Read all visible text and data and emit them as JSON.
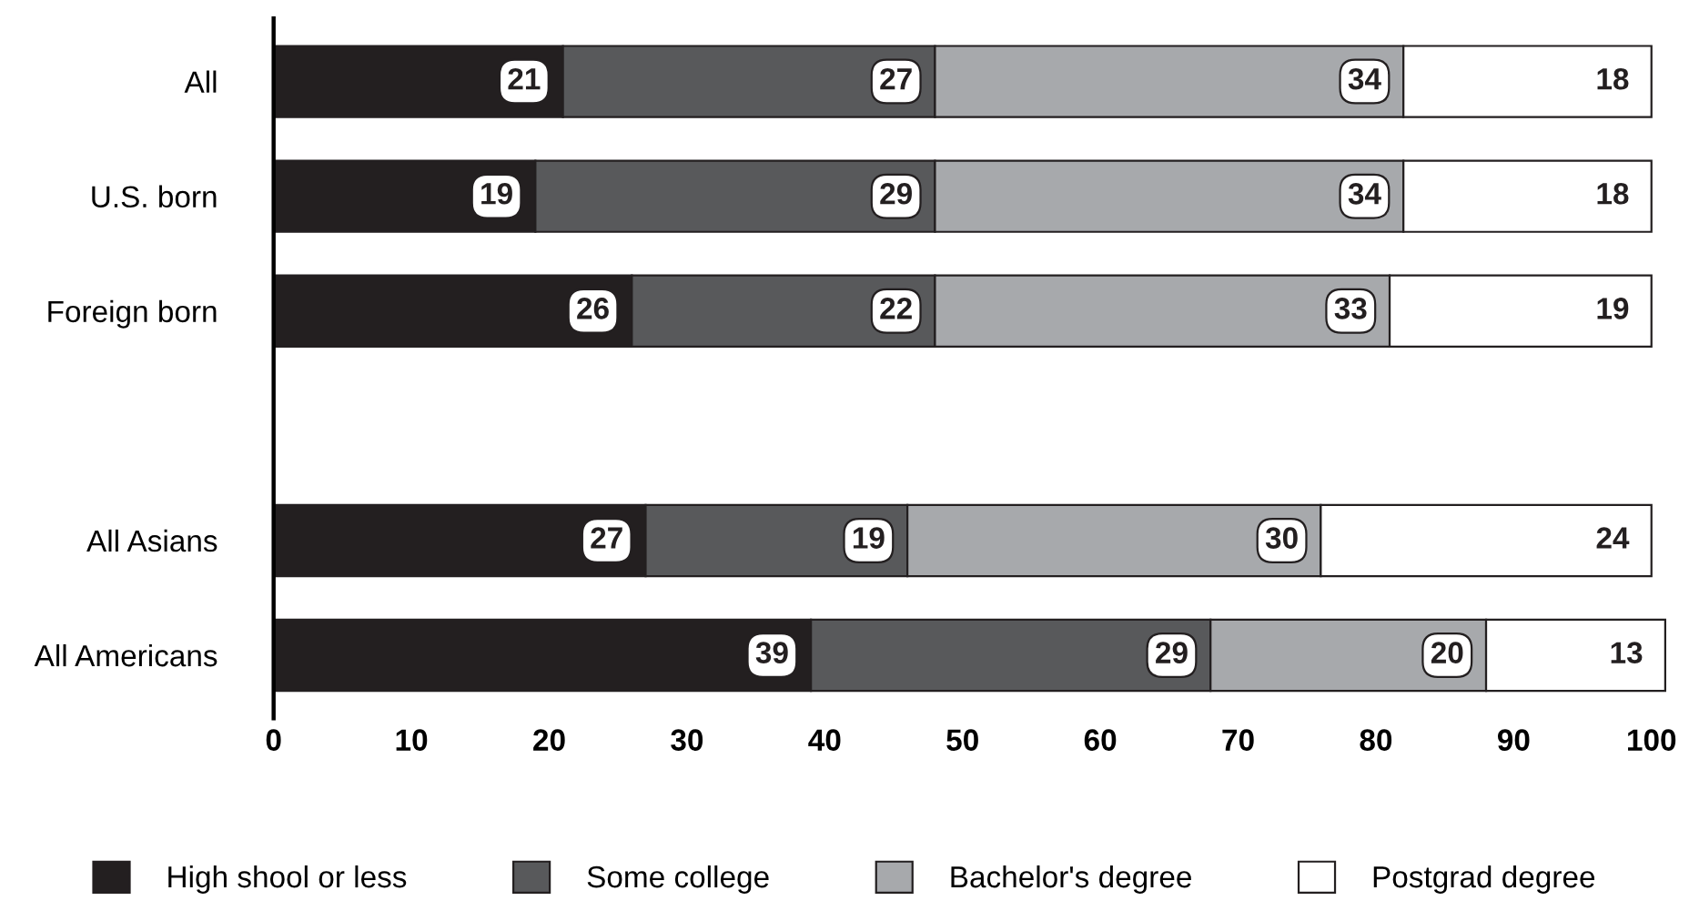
{
  "chart_data": {
    "type": "bar",
    "orientation": "horizontal",
    "stacked": true,
    "categories": [
      "All",
      "U.S. born",
      "Foreign born",
      null,
      "All Asians",
      "All Americans"
    ],
    "series": [
      {
        "name": "High shool or less",
        "color": "#231f20",
        "values": [
          21,
          19,
          26,
          null,
          27,
          39
        ]
      },
      {
        "name": "Some college",
        "color": "#58595b",
        "values": [
          27,
          29,
          22,
          null,
          19,
          29
        ]
      },
      {
        "name": "Bachelor's degree",
        "color": "#a7a9ac",
        "values": [
          34,
          34,
          33,
          null,
          30,
          20
        ]
      },
      {
        "name": "Postgrad degree",
        "color": "#ffffff",
        "values": [
          18,
          18,
          19,
          null,
          24,
          13
        ]
      }
    ],
    "xlim": [
      0,
      101.5
    ],
    "xticks": [
      0,
      10,
      20,
      30,
      40,
      50,
      60,
      70,
      80,
      90,
      100
    ],
    "data_labels": true,
    "grid": false,
    "legend": "bottom"
  }
}
